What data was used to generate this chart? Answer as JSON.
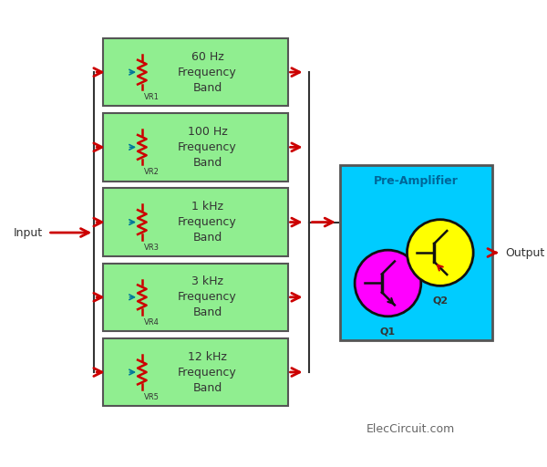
{
  "bg_color": "#ffffff",
  "bands": [
    {
      "label": "60 Hz\nFrequency\nBand",
      "vr": "VR1"
    },
    {
      "label": "100 Hz\nFrequency\nBand",
      "vr": "VR2"
    },
    {
      "label": "1 kHz\nFrequency\nBand",
      "vr": "VR3"
    },
    {
      "label": "3 kHz\nFrequency\nBand",
      "vr": "VR4"
    },
    {
      "label": "12 kHz\nFrequency\nBand",
      "vr": "VR5"
    }
  ],
  "band_box_color": "#90EE90",
  "band_box_edge": "#555555",
  "preamp_box_color": "#00CCFF",
  "preamp_box_edge": "#555555",
  "preamp_title": "Pre-Amplifier",
  "preamp_title_color": "#006699",
  "q1_color": "#FF00FF",
  "q2_color": "#FFFF00",
  "q1_label": "Q1",
  "q2_label": "Q2",
  "arrow_color": "#CC0000",
  "line_color": "#333333",
  "resistor_color": "#CC0000",
  "input_label": "Input",
  "output_label": "Output",
  "watermark": "ElecCircuit.com",
  "watermark_color": "#666666"
}
